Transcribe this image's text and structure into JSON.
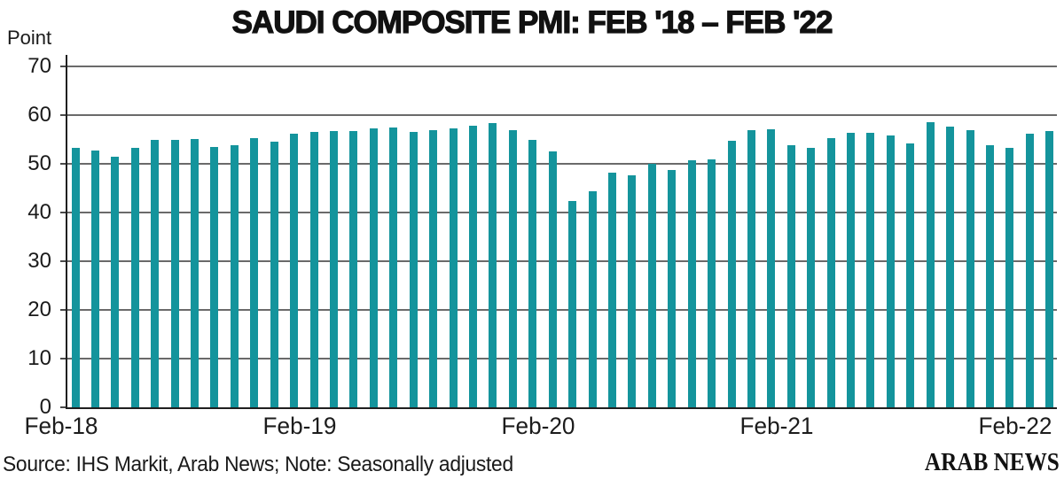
{
  "title": "SAUDI COMPOSITE PMI: FEB '18 – FEB '22",
  "y_axis": {
    "unit_label": "Point",
    "ticks": [
      0,
      10,
      20,
      30,
      40,
      50,
      60,
      70
    ],
    "max": 70
  },
  "x_axis": {
    "tick_labels": [
      "Feb-18",
      "Feb-19",
      "Feb-20",
      "Feb-21",
      "Feb-22"
    ],
    "tick_bar_indices": [
      0,
      12,
      24,
      36,
      48
    ]
  },
  "footer": {
    "source": "Source: IHS Markit, Arab News; Note: Seasonally adjusted",
    "logo": "ARAB NEWS"
  },
  "colors": {
    "bar": "#14949C",
    "gridline": "#6A6A6A",
    "axis": "#1F1F1F",
    "text": "#1A1A1A"
  },
  "chart_data": {
    "type": "bar",
    "title": "SAUDI COMPOSITE PMI: FEB '18 – FEB '22",
    "xlabel": "",
    "ylabel": "Point",
    "ylim": [
      0,
      70
    ],
    "grid": true,
    "categories": [
      "Feb-18",
      "Mar-18",
      "Apr-18",
      "May-18",
      "Jun-18",
      "Jul-18",
      "Aug-18",
      "Sep-18",
      "Oct-18",
      "Nov-18",
      "Dec-18",
      "Jan-19",
      "Feb-19",
      "Mar-19",
      "Apr-19",
      "May-19",
      "Jun-19",
      "Jul-19",
      "Aug-19",
      "Sep-19",
      "Oct-19",
      "Nov-19",
      "Dec-19",
      "Jan-20",
      "Feb-20",
      "Mar-20",
      "Apr-20",
      "May-20",
      "Jun-20",
      "Jul-20",
      "Aug-20",
      "Sep-20",
      "Oct-20",
      "Nov-20",
      "Dec-20",
      "Jan-21",
      "Feb-21",
      "Mar-21",
      "Apr-21",
      "May-21",
      "Jun-21",
      "Jul-21",
      "Aug-21",
      "Sep-21",
      "Oct-21",
      "Nov-21",
      "Dec-21",
      "Jan-22",
      "Feb-22",
      "Mar-22"
    ],
    "values": [
      53.2,
      52.8,
      51.4,
      53.2,
      55.0,
      54.9,
      55.1,
      53.4,
      53.8,
      55.2,
      54.5,
      56.2,
      56.6,
      56.8,
      56.8,
      57.3,
      57.4,
      56.6,
      57.0,
      57.3,
      57.8,
      58.3,
      56.9,
      54.9,
      52.5,
      42.4,
      44.4,
      48.1,
      47.7,
      50.0,
      48.8,
      50.7,
      51.0,
      54.7,
      57.0,
      57.1,
      53.9,
      53.3,
      55.2,
      56.4,
      56.4,
      55.8,
      54.1,
      58.6,
      57.7,
      56.9,
      53.9,
      53.2,
      56.2,
      56.8
    ]
  }
}
